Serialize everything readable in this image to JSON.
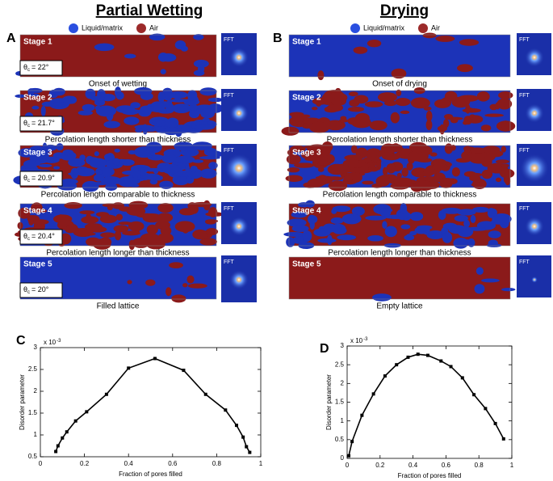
{
  "panels": [
    {
      "title": "Partial Wetting",
      "letter": "A",
      "legend": [
        "Liquid/matrix",
        "Air"
      ],
      "theta_symbol": "θ",
      "theta_subscript": "c",
      "stages": [
        {
          "label": "Stage 1",
          "fft": "FFT",
          "theta": "= 22°",
          "caption": "Onset of wetting"
        },
        {
          "label": "Stage 2",
          "fft": "FFT",
          "theta": "= 21.7°",
          "caption": "Percolation length shorter than thickness"
        },
        {
          "label": "Stage 3",
          "fft": "FFT",
          "theta": "= 20.9°",
          "caption": "Percolation length comparable to thickness"
        },
        {
          "label": "Stage 4",
          "fft": "FFT",
          "theta": "= 20.4°",
          "caption": "Percolation length longer than thickness"
        },
        {
          "label": "Stage 5",
          "fft": "FFT",
          "theta": "= 20°",
          "caption": "Filled lattice"
        }
      ]
    },
    {
      "title": "Drying",
      "letter": "B",
      "legend": [
        "Liquid/matrix",
        "Air"
      ],
      "stages": [
        {
          "label": "Stage 1",
          "fft": "FFT",
          "caption": "Onset of drying"
        },
        {
          "label": "Stage 2",
          "fft": "FFT",
          "caption": "Percolation length shorter than thickness"
        },
        {
          "label": "Stage 3",
          "fft": "FFT",
          "caption": "Percolation length comparable to thickness"
        },
        {
          "label": "Stage 4",
          "fft": "FFT",
          "caption": "Percolation length longer than thickness"
        },
        {
          "label": "Stage 5",
          "fft": "FFT",
          "caption": "Empty lattice"
        }
      ]
    }
  ],
  "chart_data": [
    {
      "type": "line",
      "letter": "C",
      "xlabel": "Fraction of pores filled",
      "ylabel": "Disorder parameter",
      "exponent_base": "x 10",
      "exponent": "-3",
      "color": "#000000",
      "x": [
        0.07,
        0.08,
        0.1,
        0.12,
        0.16,
        0.21,
        0.3,
        0.4,
        0.52,
        0.65,
        0.75,
        0.84,
        0.89,
        0.92,
        0.935,
        0.95
      ],
      "values": [
        0.62,
        0.75,
        0.93,
        1.07,
        1.32,
        1.53,
        1.93,
        2.53,
        2.75,
        2.48,
        1.93,
        1.57,
        1.22,
        0.95,
        0.73,
        0.6
      ],
      "xlim": [
        0,
        1
      ],
      "ylim": [
        0.5,
        3
      ],
      "xticks": [
        0,
        0.2,
        0.4,
        0.6,
        0.8,
        1
      ],
      "yticks": [
        0.5,
        1,
        1.5,
        2,
        2.5,
        3
      ]
    },
    {
      "type": "line",
      "letter": "D",
      "xlabel": "Fraction of pores filled",
      "ylabel": "Disorder parameter",
      "exponent_base": "x 10",
      "exponent": "-3",
      "color": "#000000",
      "x": [
        0.01,
        0.03,
        0.09,
        0.16,
        0.23,
        0.3,
        0.37,
        0.43,
        0.49,
        0.57,
        0.63,
        0.7,
        0.77,
        0.84,
        0.9,
        0.95
      ],
      "values": [
        0.07,
        0.45,
        1.15,
        1.72,
        2.2,
        2.5,
        2.7,
        2.78,
        2.75,
        2.6,
        2.45,
        2.15,
        1.7,
        1.33,
        0.93,
        0.52
      ],
      "xlim": [
        0,
        1
      ],
      "ylim": [
        0,
        3
      ],
      "xticks": [
        0,
        0.2,
        0.4,
        0.6,
        0.8,
        1
      ],
      "yticks": [
        0,
        0.5,
        1,
        1.5,
        2,
        2.5,
        3
      ]
    }
  ]
}
